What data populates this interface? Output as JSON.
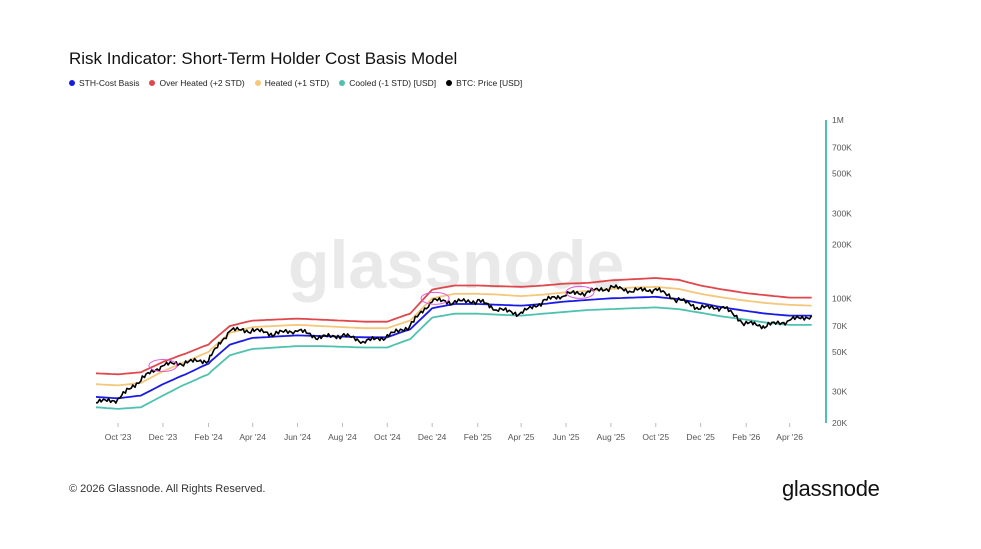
{
  "title": "Risk Indicator: Short-Term Holder Cost Basis Model",
  "watermark": "glassnode",
  "footer": "© 2026 Glassnode. All Rights Reserved.",
  "brand": "glassnode",
  "legend": [
    {
      "label": "STH-Cost Basis",
      "color": "#1a1ae6"
    },
    {
      "label": "Over Heated (+2 STD)",
      "color": "#e0474c"
    },
    {
      "label": "Heated (+1 STD)",
      "color": "#f4c77a"
    },
    {
      "label": "Cooled (-1 STD) [USD]",
      "color": "#4fc1b0"
    },
    {
      "label": "BTC: Price [USD]",
      "color": "#000000"
    }
  ],
  "chart_data": {
    "type": "line",
    "yscale": "log",
    "ylim": [
      20000,
      1000000
    ],
    "yticks": [
      {
        "value": 20000,
        "label": "20K"
      },
      {
        "value": 30000,
        "label": "30K"
      },
      {
        "value": 50000,
        "label": "50K"
      },
      {
        "value": 70000,
        "label": "70K"
      },
      {
        "value": 100000,
        "label": "100K"
      },
      {
        "value": 200000,
        "label": "200K"
      },
      {
        "value": 300000,
        "label": "300K"
      },
      {
        "value": 500000,
        "label": "500K"
      },
      {
        "value": 700000,
        "label": "700K"
      },
      {
        "value": 1000000,
        "label": "1M"
      }
    ],
    "xlim": [
      "2023-09-01",
      "2026-05-15"
    ],
    "xticks": [
      {
        "date": "2023-10-01",
        "label": "Oct '23"
      },
      {
        "date": "2023-12-01",
        "label": "Dec '23"
      },
      {
        "date": "2024-02-01",
        "label": "Feb '24"
      },
      {
        "date": "2024-04-01",
        "label": "Apr '24"
      },
      {
        "date": "2024-06-01",
        "label": "Jun '24"
      },
      {
        "date": "2024-08-01",
        "label": "Aug '24"
      },
      {
        "date": "2024-10-01",
        "label": "Oct '24"
      },
      {
        "date": "2024-12-01",
        "label": "Dec '24"
      },
      {
        "date": "2025-02-01",
        "label": "Feb '25"
      },
      {
        "date": "2025-04-01",
        "label": "Apr '25"
      },
      {
        "date": "2025-06-01",
        "label": "Jun '25"
      },
      {
        "date": "2025-08-01",
        "label": "Aug '25"
      },
      {
        "date": "2025-10-01",
        "label": "Oct '25"
      },
      {
        "date": "2025-12-01",
        "label": "Dec '25"
      },
      {
        "date": "2026-02-01",
        "label": "Feb '26"
      },
      {
        "date": "2026-04-01",
        "label": "Apr '26"
      }
    ],
    "dates": [
      "2023-09-01",
      "2023-10-01",
      "2023-11-01",
      "2023-12-01",
      "2024-01-01",
      "2024-02-01",
      "2024-03-01",
      "2024-04-01",
      "2024-05-01",
      "2024-06-01",
      "2024-07-01",
      "2024-08-01",
      "2024-09-01",
      "2024-10-01",
      "2024-11-01",
      "2024-12-01",
      "2025-01-01",
      "2025-02-01",
      "2025-03-01",
      "2025-04-01",
      "2025-05-01",
      "2025-06-01",
      "2025-07-01",
      "2025-08-01",
      "2025-09-01",
      "2025-10-01",
      "2025-11-01",
      "2025-12-01",
      "2026-01-01",
      "2026-02-01",
      "2026-03-01",
      "2026-04-01",
      "2026-05-01"
    ],
    "series": [
      {
        "name": "Over Heated (+2 STD)",
        "color": "#e0474c",
        "values": [
          38000,
          37500,
          38500,
          44000,
          49000,
          55000,
          70000,
          75000,
          76000,
          77000,
          76000,
          75000,
          74000,
          74000,
          82000,
          112000,
          118000,
          118000,
          117000,
          116000,
          118000,
          121000,
          122000,
          126000,
          128000,
          130000,
          127000,
          118000,
          112000,
          107000,
          104000,
          101000,
          101000
        ]
      },
      {
        "name": "Heated (+1 STD)",
        "color": "#f4c77a",
        "values": [
          33000,
          32500,
          33500,
          39000,
          44000,
          50000,
          64000,
          69000,
          70000,
          71000,
          70000,
          69000,
          68000,
          68000,
          75000,
          100000,
          106000,
          106000,
          105000,
          103000,
          105000,
          108000,
          110000,
          113000,
          115000,
          116000,
          113000,
          106000,
          101000,
          97000,
          94000,
          92000,
          91000
        ]
      },
      {
        "name": "STH-Cost Basis",
        "color": "#1a1ae6",
        "values": [
          28000,
          27500,
          28500,
          33000,
          37500,
          43000,
          55000,
          60000,
          61000,
          62000,
          61500,
          61000,
          60500,
          60500,
          67000,
          88000,
          93000,
          93000,
          92000,
          91000,
          93000,
          96000,
          98000,
          100000,
          101000,
          102000,
          99000,
          94000,
          89000,
          85000,
          82000,
          80000,
          80000
        ]
      },
      {
        "name": "Cooled (-1 STD) [USD]",
        "color": "#4fc1b0",
        "values": [
          24500,
          24000,
          24500,
          28500,
          33000,
          37500,
          48000,
          52000,
          53000,
          54000,
          54000,
          53500,
          53000,
          53000,
          59000,
          78000,
          82000,
          82000,
          81000,
          80000,
          82000,
          84000,
          86000,
          87000,
          88000,
          89000,
          87000,
          83000,
          79000,
          76000,
          73000,
          71000,
          71000
        ]
      },
      {
        "name": "BTC: Price [USD]",
        "color": "#000000",
        "values": [
          26000,
          27000,
          35000,
          42000,
          43500,
          45000,
          66000,
          66000,
          63000,
          66000,
          60000,
          62000,
          57000,
          61000,
          70000,
          97000,
          95000,
          97000,
          86000,
          82000,
          96000,
          105000,
          108000,
          115000,
          110000,
          112000,
          98000,
          88000,
          89000,
          72000,
          70000,
          75000,
          80000
        ]
      }
    ],
    "highlights": [
      {
        "date": "2023-12-01",
        "value": 42000
      },
      {
        "date": "2024-12-05",
        "value": 100000
      },
      {
        "date": "2025-06-20",
        "value": 108000
      }
    ]
  }
}
